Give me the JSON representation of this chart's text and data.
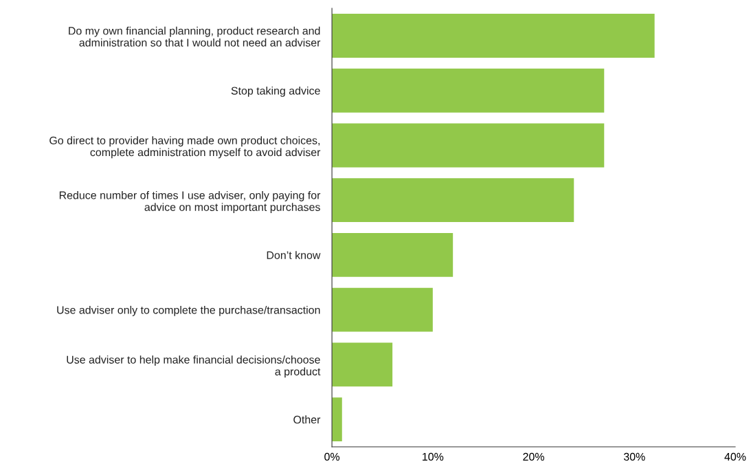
{
  "chart_data": {
    "type": "bar",
    "orientation": "horizontal",
    "categories": [
      "Do my own financial planning, product research and\nadministration so that I would not need an adviser",
      "Stop taking advice",
      "Go direct to provider having made own product choices,\ncomplete administration myself to avoid adviser",
      "Reduce number of times I use adviser, only paying for\nadvice on most important purchases",
      "Don’t know",
      "Use adviser only to complete the purchase/transaction",
      "Use adviser to help make financial decisions/choose\na product",
      "Other"
    ],
    "values": [
      32,
      27,
      27,
      24,
      12,
      10,
      6,
      1
    ],
    "color": "#92c84a",
    "xlim": [
      0,
      40
    ],
    "xticks": [
      {
        "value": 0,
        "label": "0%"
      },
      {
        "value": 10,
        "label": "10%"
      },
      {
        "value": 20,
        "label": "20%"
      },
      {
        "value": 30,
        "label": "30%"
      },
      {
        "value": 40,
        "label": "40%"
      }
    ],
    "grid": false,
    "legend": false
  }
}
